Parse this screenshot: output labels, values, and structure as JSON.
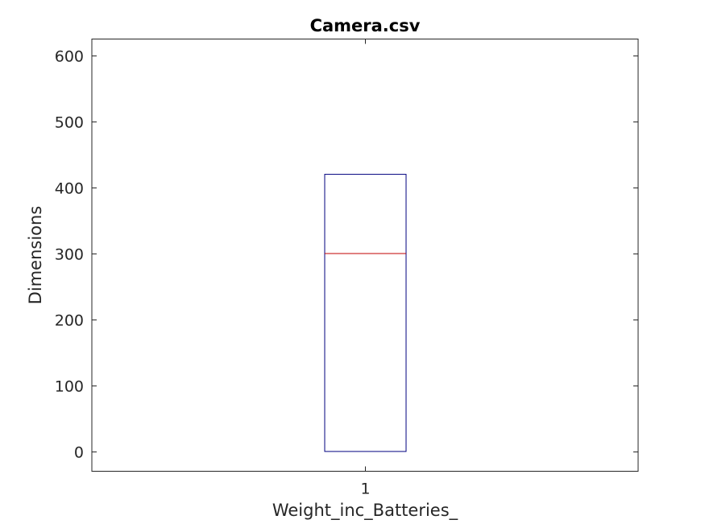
{
  "chart_data": {
    "type": "box",
    "title": "Camera.csv",
    "xlabel": "Weight_inc_Batteries_",
    "ylabel": "Dimensions",
    "categories": [
      "1"
    ],
    "ylim": [
      -30,
      625
    ],
    "yticks": [
      0,
      100,
      200,
      300,
      400,
      500,
      600
    ],
    "ytick_labels": [
      "0",
      "100",
      "200",
      "300",
      "400",
      "500",
      "600"
    ],
    "boxes": [
      {
        "category": "1",
        "q1": 0,
        "median": 300,
        "q3": 420,
        "whisker_low": 0,
        "whisker_high": 420
      }
    ],
    "grid": false,
    "colors": {
      "box": "#00007f",
      "median": "#c00000",
      "axes": "#262626"
    }
  }
}
